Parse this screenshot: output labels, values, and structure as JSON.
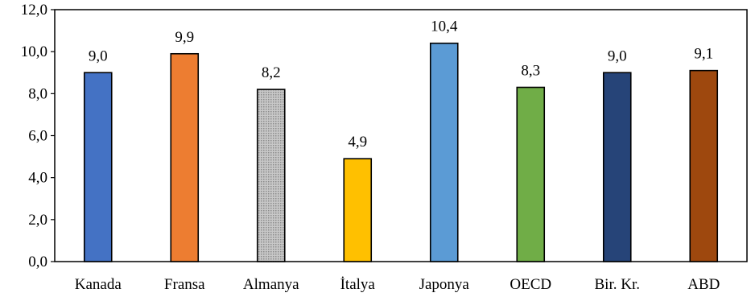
{
  "chart_data": {
    "type": "bar",
    "categories": [
      "Kanada",
      "Fransa",
      "Almanya",
      "İtalya",
      "Japonya",
      "OECD",
      "Bir. Kr.",
      "ABD"
    ],
    "values": [
      9.0,
      9.9,
      8.2,
      4.9,
      10.4,
      8.3,
      9.0,
      9.1
    ],
    "data_labels": [
      "9,0",
      "9,9",
      "8,2",
      "4,9",
      "10,4",
      "8,3",
      "9,0",
      "9,1"
    ],
    "bar_colors": [
      "#4472C4",
      "#ED7D31",
      "#A5A5A5",
      "#FFC000",
      "#5B9BD5",
      "#70AD47",
      "#264478",
      "#9E480E"
    ],
    "bar_patterns": [
      "solid",
      "solid",
      "dotted",
      "solid",
      "solid",
      "solid",
      "solid",
      "solid"
    ],
    "title": "",
    "xlabel": "",
    "ylabel": "",
    "ylim": [
      0,
      12
    ],
    "yticks": [
      0,
      2,
      4,
      6,
      8,
      10,
      12
    ],
    "ytick_labels": [
      "0,0",
      "2,0",
      "4,0",
      "6,0",
      "8,0",
      "10,0",
      "12,0"
    ],
    "grid": false,
    "legend": "none"
  }
}
